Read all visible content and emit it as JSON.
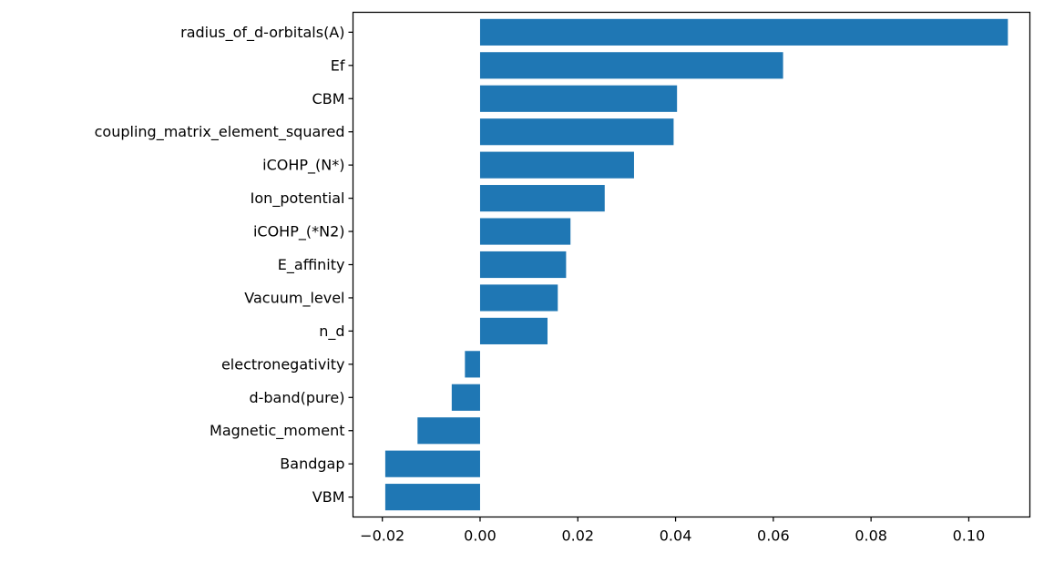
{
  "chart_data": {
    "type": "bar",
    "orientation": "horizontal",
    "title": "",
    "xlabel": "",
    "ylabel": "",
    "color": "#1f77b4",
    "grid": false,
    "xlim": [
      -0.026,
      0.1125
    ],
    "categories": [
      "radius_of_d-orbitals(A)",
      "Ef",
      "CBM",
      "coupling_matrix_element_squared",
      "iCOHP_(N*)",
      "Ion_potential",
      "iCOHP_(*N2)",
      "E_affinity",
      "Vacuum_level",
      "n_d",
      "electronegativity",
      "d-band(pure)",
      "Magnetic_moment",
      "Bandgap",
      "VBM"
    ],
    "values": [
      0.108,
      0.062,
      0.0403,
      0.0396,
      0.0315,
      0.0255,
      0.0185,
      0.0176,
      0.0159,
      0.0138,
      -0.0031,
      -0.0058,
      -0.0128,
      -0.0194,
      -0.0194
    ],
    "xticks": [
      -0.02,
      0.0,
      0.02,
      0.04,
      0.06,
      0.08,
      0.1
    ],
    "xtick_labels": [
      "−0.02",
      "0.00",
      "0.02",
      "0.04",
      "0.06",
      "0.08",
      "0.10"
    ]
  }
}
